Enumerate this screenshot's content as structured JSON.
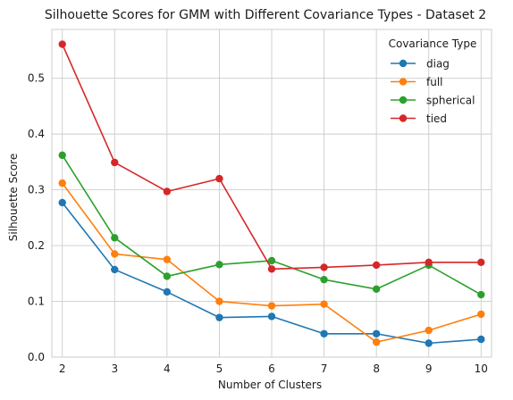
{
  "chart_data": {
    "type": "line",
    "title": "Silhouette Scores for GMM with Different Covariance Types - Dataset 2",
    "xlabel": "Number of Clusters",
    "ylabel": "Silhouette Score",
    "x": [
      2,
      3,
      4,
      5,
      6,
      7,
      8,
      9,
      10
    ],
    "xlim": [
      1.8,
      10.2
    ],
    "ylim": [
      0,
      0.5875
    ],
    "xticks": [
      "2",
      "3",
      "4",
      "5",
      "6",
      "7",
      "8",
      "9",
      "10"
    ],
    "yticks": [
      0.0,
      0.1,
      0.2,
      0.3,
      0.4,
      0.5
    ],
    "ytick_labels": [
      "0.0",
      "0.1",
      "0.2",
      "0.3",
      "0.4",
      "0.5"
    ],
    "grid": true,
    "legend": {
      "title": "Covariance Type",
      "position": "upper right"
    },
    "series": [
      {
        "name": "diag",
        "color": "#1f77b4",
        "values": [
          0.277,
          0.157,
          0.117,
          0.071,
          0.073,
          0.042,
          0.042,
          0.025,
          0.032
        ]
      },
      {
        "name": "full",
        "color": "#ff7f0e",
        "values": [
          0.312,
          0.185,
          0.175,
          0.1,
          0.092,
          0.095,
          0.027,
          0.048,
          0.077
        ]
      },
      {
        "name": "spherical",
        "color": "#2ca02c",
        "values": [
          0.362,
          0.214,
          0.145,
          0.166,
          0.173,
          0.139,
          0.122,
          0.165,
          0.112
        ]
      },
      {
        "name": "tied",
        "color": "#d62728",
        "values": [
          0.561,
          0.349,
          0.297,
          0.32,
          0.158,
          0.161,
          0.165,
          0.17,
          0.17
        ]
      }
    ]
  }
}
